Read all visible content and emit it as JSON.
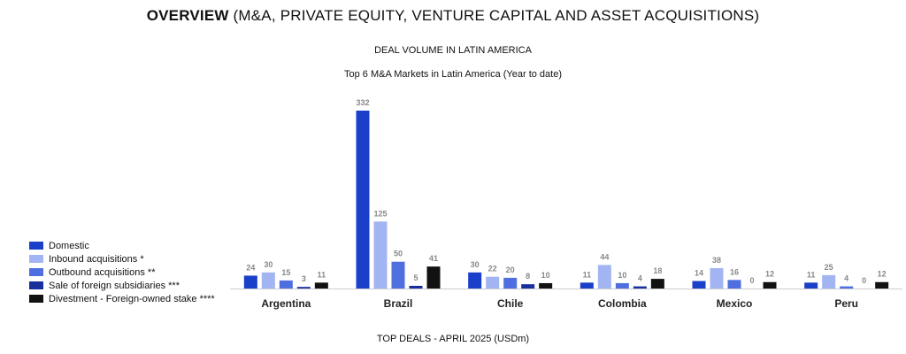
{
  "header": {
    "title_bold": "OVERVIEW",
    "title_rest": " (M&A, PRIVATE EQUITY, VENTURE CAPITAL AND ASSET ACQUISITIONS)",
    "section": "DEAL VOLUME IN LATIN AMERICA"
  },
  "footer": {
    "section": "TOP DEALS - APRIL 2025 (USDm)"
  },
  "colors": {
    "domestic": "#1a3fc9",
    "inbound": "#a3b4f3",
    "outbound": "#4f6fe0",
    "sale_foreign": "#1a2f9e",
    "divestment": "#111111",
    "axis": "#cccccc"
  },
  "chart_data": {
    "type": "bar",
    "title": "Top 6 M&A Markets in Latin America (Year to date)",
    "categories": [
      "Argentina",
      "Brazil",
      "Chile",
      "Colombia",
      "Mexico",
      "Peru"
    ],
    "series": [
      {
        "name": "Domestic",
        "color": "#1a3fc9",
        "values": [
          24,
          332,
          30,
          11,
          14,
          11
        ]
      },
      {
        "name": "Inbound acquisitions *",
        "color": "#a3b4f3",
        "values": [
          30,
          125,
          22,
          44,
          38,
          25
        ]
      },
      {
        "name": "Outbound acquisitions **",
        "color": "#4f6fe0",
        "values": [
          15,
          50,
          20,
          10,
          16,
          4
        ]
      },
      {
        "name": "Sale of foreign subsidiaries ***",
        "color": "#1a2f9e",
        "values": [
          3,
          5,
          8,
          4,
          0,
          0
        ]
      },
      {
        "name": "Divestment - Foreign-owned stake ****",
        "color": "#111111",
        "values": [
          11,
          41,
          10,
          18,
          12,
          12
        ]
      }
    ],
    "xlabel": "",
    "ylabel": "",
    "ylim": [
      0,
      332
    ],
    "grid": false,
    "legend": "left"
  }
}
